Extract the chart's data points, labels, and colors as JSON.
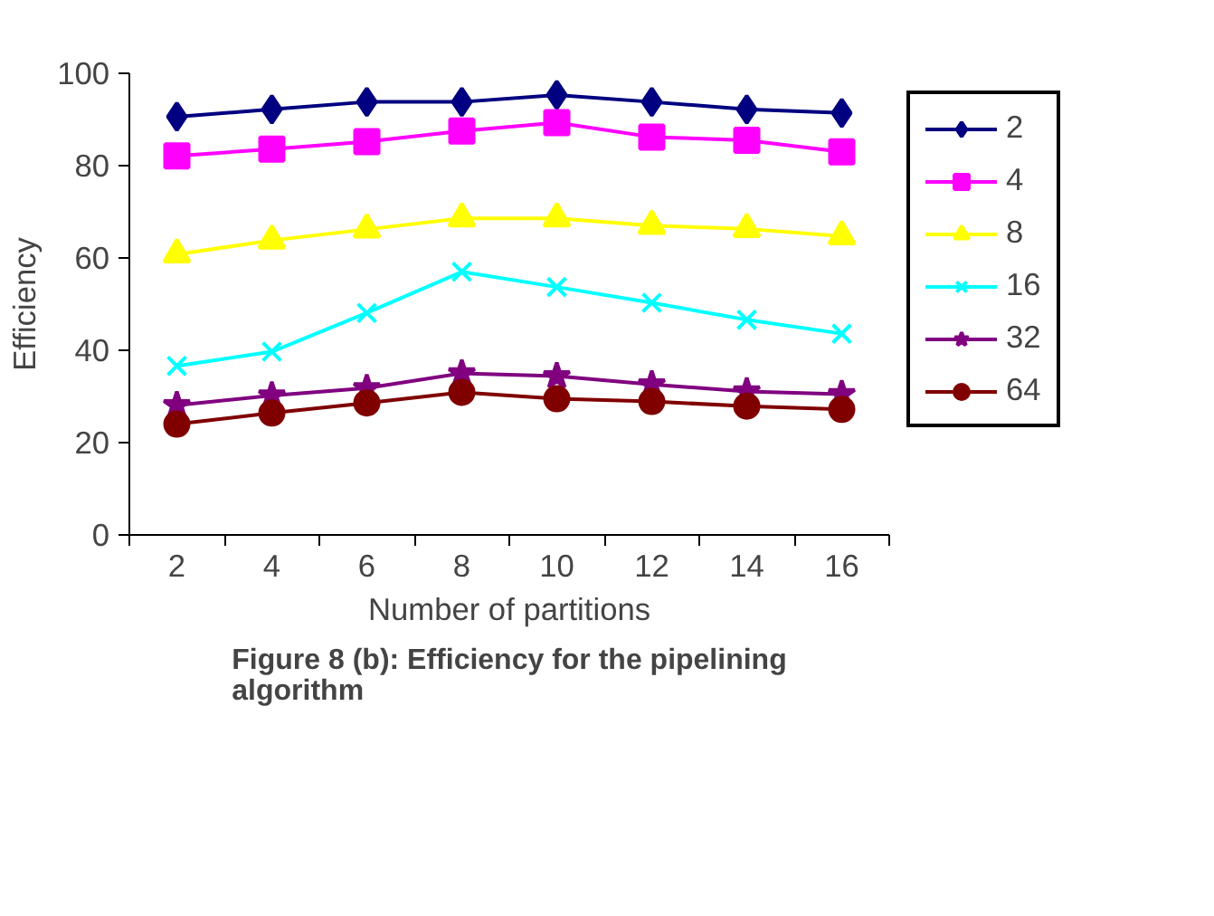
{
  "chart_data": {
    "type": "line",
    "title": "Figure 8 (b): Efficiency for the pipelining algorithm",
    "xlabel": "Number of partitions",
    "ylabel": "Efficiency",
    "categories": [
      "2",
      "4",
      "6",
      "8",
      "10",
      "12",
      "14",
      "16"
    ],
    "ylim": [
      0,
      100
    ],
    "yticks": [
      0,
      20,
      40,
      60,
      80,
      100
    ],
    "grid": false,
    "legend": "right",
    "series": [
      {
        "name": "2",
        "color": "#000080",
        "marker": "diamond",
        "values": [
          90.6,
          92.2,
          93.8,
          93.8,
          95.3,
          93.8,
          92.2,
          91.4
        ]
      },
      {
        "name": "4",
        "color": "#ff00ff",
        "marker": "square",
        "values": [
          82.1,
          83.6,
          85.2,
          87.5,
          89.3,
          86.2,
          85.5,
          83.0
        ]
      },
      {
        "name": "8",
        "color": "#ffff00",
        "marker": "triangle",
        "values": [
          60.8,
          63.8,
          66.2,
          68.6,
          68.6,
          67.0,
          66.3,
          64.7
        ]
      },
      {
        "name": "16",
        "color": "#00ffff",
        "marker": "cross",
        "values": [
          36.6,
          39.7,
          48.1,
          57.0,
          53.7,
          50.3,
          46.6,
          43.6
        ]
      },
      {
        "name": "32",
        "color": "#800080",
        "marker": "star",
        "values": [
          28.1,
          30.2,
          31.8,
          35.0,
          34.4,
          32.6,
          31.1,
          30.5
        ]
      },
      {
        "name": "64",
        "color": "#800000",
        "marker": "circle",
        "values": [
          24.0,
          26.4,
          28.6,
          30.9,
          29.5,
          28.9,
          27.9,
          27.2
        ]
      }
    ]
  }
}
